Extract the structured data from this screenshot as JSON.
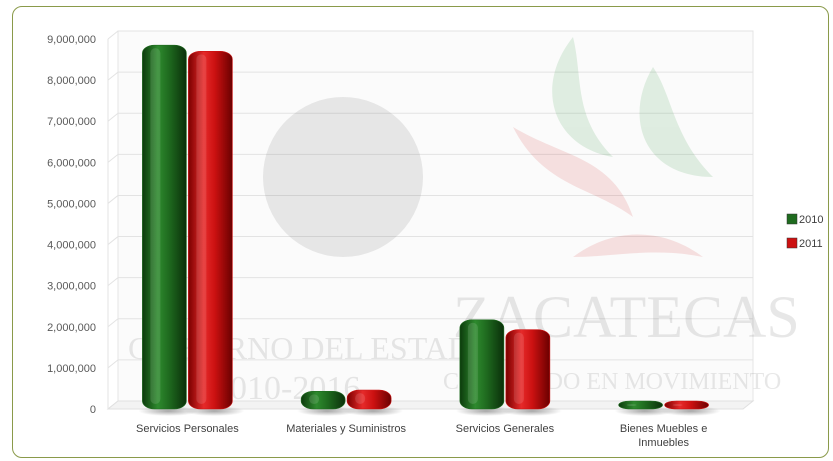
{
  "chart_data": {
    "type": "bar",
    "categories": [
      "Servicios Personales",
      "Materiales y Suministros",
      "Servicios Generales",
      "Bienes Muebles e Inmuebles"
    ],
    "series": [
      {
        "name": "2010",
        "color": "#1f6b1f",
        "values": [
          8850000,
          430000,
          2170000,
          60000
        ]
      },
      {
        "name": "2011",
        "color": "#cc1111",
        "values": [
          8700000,
          460000,
          1930000,
          50000
        ]
      }
    ],
    "ylim": [
      0,
      9000000
    ],
    "yticks": [
      "0",
      "1,000,000",
      "2,000,000",
      "3,000,000",
      "4,000,000",
      "5,000,000",
      "6,000,000",
      "7,000,000",
      "8,000,000",
      "9,000,000"
    ],
    "grid": true,
    "legend": "right"
  },
  "watermark": {
    "line1": "ZACATECAS",
    "line2": "CRECIENDO EN MOVIMIENTO",
    "line3": "GOBIERNO DEL ESTADO",
    "line4": "2010-2016"
  }
}
